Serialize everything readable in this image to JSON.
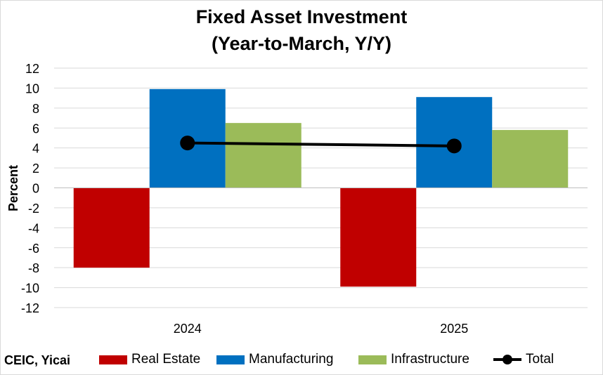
{
  "chart_data": {
    "type": "bar",
    "title": "Fixed Asset Investment",
    "subtitle": "(Year-to-March, Y/Y)",
    "ylabel": "Percent",
    "xlabel": "",
    "categories": [
      "2024",
      "2025"
    ],
    "ylim": [
      -12,
      12
    ],
    "yticks": [
      12,
      10,
      8,
      6,
      4,
      2,
      0,
      -2,
      -4,
      -6,
      -8,
      -10,
      -12
    ],
    "grid": true,
    "legend_position": "bottom",
    "series": [
      {
        "name": "Real Estate",
        "type": "bar",
        "color": "#c00000",
        "values": [
          -8.0,
          -9.9
        ]
      },
      {
        "name": "Manufacturing",
        "type": "bar",
        "color": "#0070c0",
        "values": [
          9.9,
          9.1
        ]
      },
      {
        "name": "Infrastructure",
        "type": "bar",
        "color": "#9bbb59",
        "values": [
          6.5,
          5.8
        ]
      },
      {
        "name": "Total",
        "type": "line",
        "color": "#000000",
        "values": [
          4.5,
          4.2
        ]
      }
    ]
  },
  "source": "CEIC, Yicai",
  "colors": {
    "grid": "#d9d9d9",
    "axis": "#bfbfbf",
    "text": "#000000"
  }
}
